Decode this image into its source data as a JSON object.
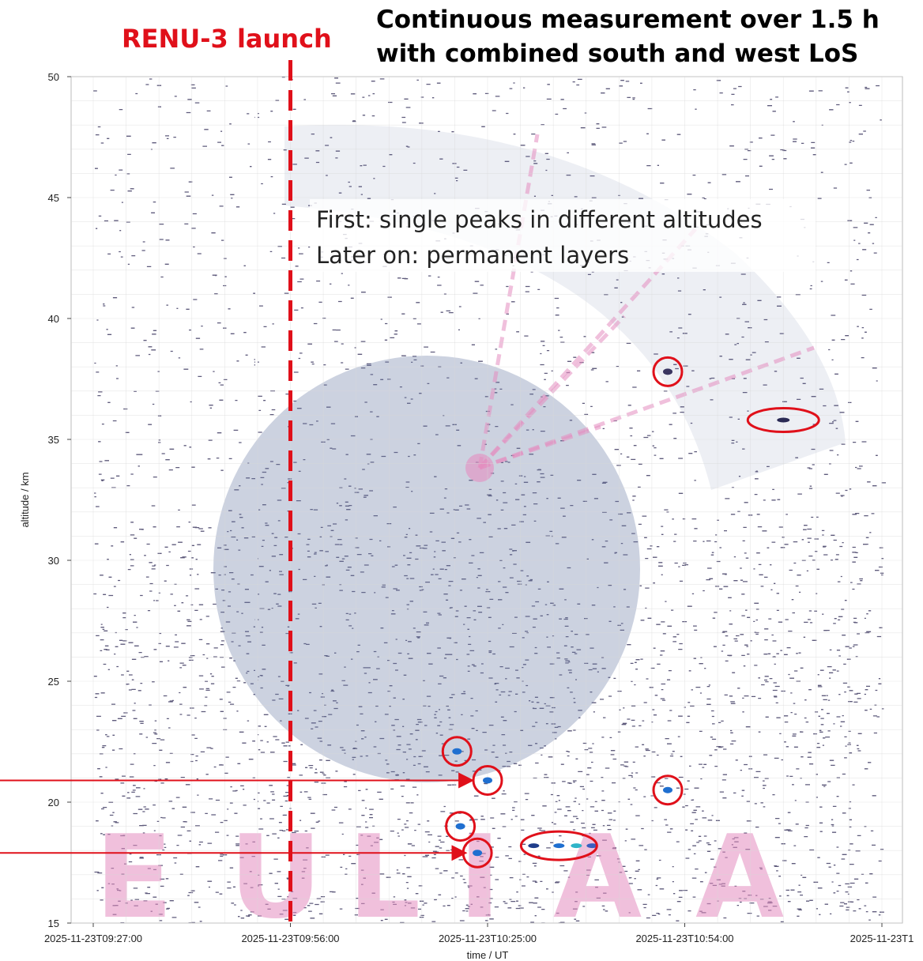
{
  "title": "Continuous measurement over 1.5 h\nwith combined south and west LoS",
  "launch": {
    "label": "RENU-3 launch",
    "time_min": 29
  },
  "annotation": {
    "line1": "First: single peaks in different altitudes",
    "line2": "Later on: permanent layers"
  },
  "watermark_text": "EULIAA",
  "colors": {
    "accent": "#e0101a",
    "noise": "#2a2450",
    "globe": "#6c7fa6",
    "watermark_pink": "#e58ec0",
    "peak": "#1f6fd0"
  },
  "chart_data": {
    "type": "heatmap",
    "xlabel": "time / UT",
    "ylabel": "altitude / km",
    "ylim": [
      15,
      50
    ],
    "xlim_min": [
      0,
      116
    ],
    "xticks": [
      {
        "min": 0,
        "label": "2025-11-23T09:27:00"
      },
      {
        "min": 29,
        "label": "2025-11-23T09:56:00"
      },
      {
        "min": 58,
        "label": "2025-11-23T10:25:00"
      },
      {
        "min": 87,
        "label": "2025-11-23T10:54:00"
      },
      {
        "min": 116,
        "label": "2025-11-23T1"
      }
    ],
    "yticks": [
      15,
      20,
      25,
      30,
      35,
      40,
      45,
      50
    ],
    "highlighted_peaks": [
      {
        "time_min": 84.5,
        "altitude_km": 37.8
      },
      {
        "time_min": 101.5,
        "altitude_km": 35.8
      },
      {
        "time_min": 53.5,
        "altitude_km": 22.1
      },
      {
        "time_min": 58.0,
        "altitude_km": 20.9
      },
      {
        "time_min": 84.5,
        "altitude_km": 20.5
      },
      {
        "time_min": 54.0,
        "altitude_km": 19.0
      },
      {
        "time_min": 56.5,
        "altitude_km": 17.9
      },
      {
        "time_min": 68.5,
        "altitude_km": 18.2,
        "wide": true
      }
    ],
    "arrow_targets": [
      {
        "time_min": 56.5,
        "altitude_km": 20.9
      },
      {
        "time_min": 55.5,
        "altitude_km": 17.9
      }
    ]
  }
}
